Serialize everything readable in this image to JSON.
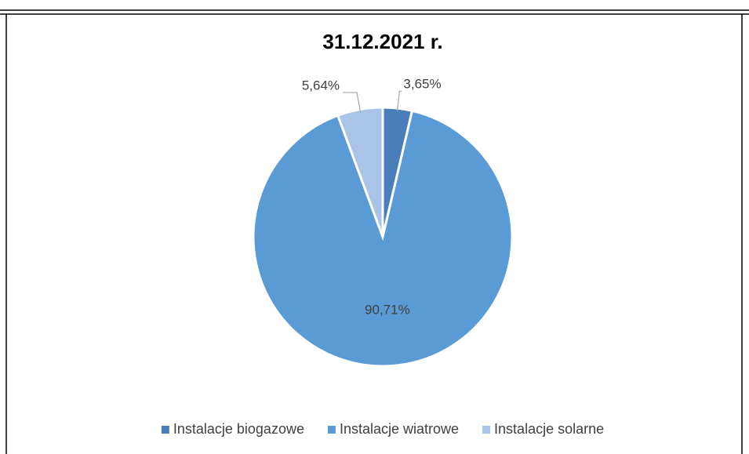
{
  "chart_data": {
    "type": "pie",
    "title": "31.12.2021 r.",
    "categories": [
      "Instalacje biogazowe",
      "Instalacje wiatrowe",
      "Instalacje solarne"
    ],
    "values": [
      3.65,
      90.71,
      5.64
    ],
    "value_labels": [
      "3,65%",
      "90,71%",
      "5,64%"
    ],
    "colors": [
      "#4a7ebb",
      "#5b9bd5",
      "#a9c4e6"
    ],
    "legend": "bottom"
  }
}
